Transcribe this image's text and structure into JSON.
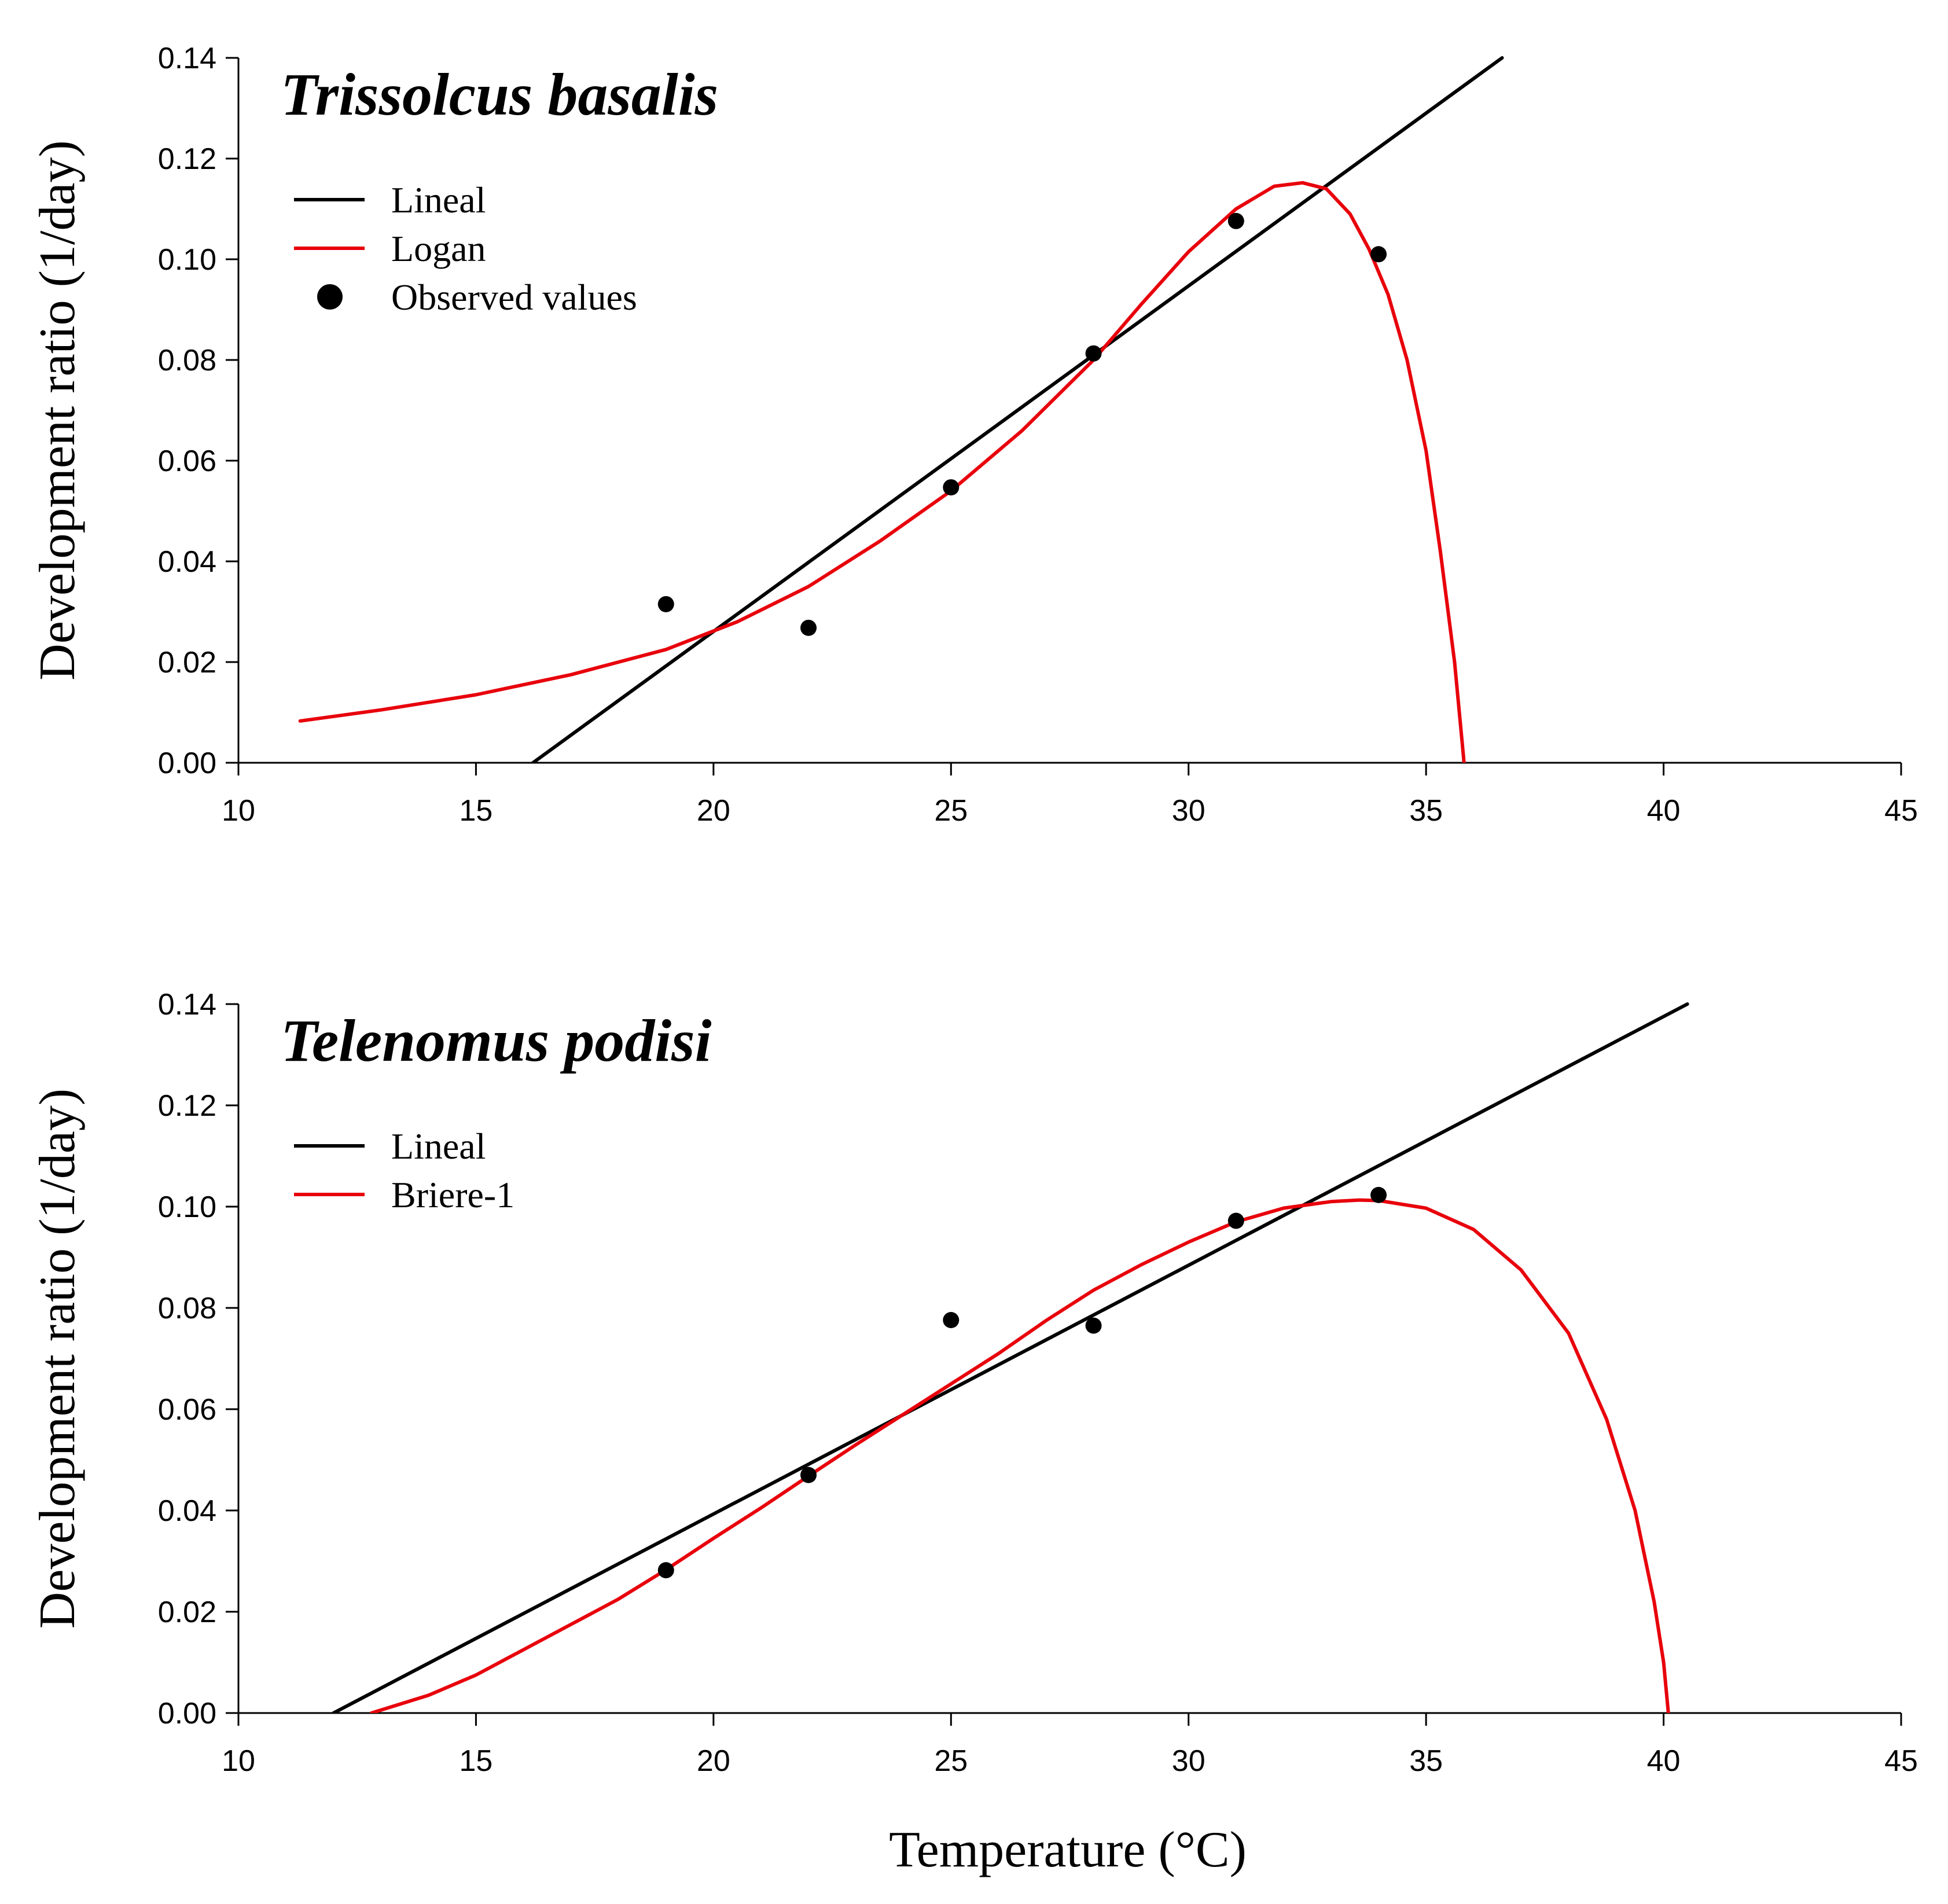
{
  "figure": {
    "x_axis_title": "Temperature (°C)",
    "text_color": "#000000",
    "background": "#ffffff"
  },
  "chart_data": [
    {
      "type": "line",
      "title": "Trissolcus basalis",
      "xlabel": "Temperature (°C)",
      "ylabel": "Development ratio (1/day)",
      "xlim": [
        10,
        45
      ],
      "ylim": [
        0,
        0.14
      ],
      "xticks": [
        "10",
        "15",
        "20",
        "25",
        "30",
        "35",
        "40",
        "45"
      ],
      "yticks": [
        "0.00",
        "0.02",
        "0.04",
        "0.06",
        "0.08",
        "0.10",
        "0.12",
        "0.14"
      ],
      "grid": false,
      "legend_position": "top-left",
      "legend": [
        {
          "label": "Lineal",
          "kind": "line",
          "color": "#000000"
        },
        {
          "label": "Logan",
          "kind": "line",
          "color": "#e8000b"
        },
        {
          "label": "Observed values",
          "kind": "marker",
          "color": "#000000"
        }
      ],
      "series": [
        {
          "name": "Lineal",
          "kind": "line",
          "color": "#000000",
          "x": [
            16.2,
            36.6
          ],
          "y": [
            0.0,
            0.14
          ]
        },
        {
          "name": "Logan",
          "kind": "line",
          "color": "#e8000b",
          "x": [
            11.3,
            13,
            15,
            17,
            19,
            20.5,
            22,
            23.5,
            25,
            26.5,
            28,
            29,
            30,
            31,
            31.8,
            32.4,
            32.9,
            33.4,
            33.8,
            34.2,
            34.6,
            35.0,
            35.3,
            35.6,
            35.8
          ],
          "y": [
            0.0083,
            0.0105,
            0.0135,
            0.0175,
            0.0225,
            0.028,
            0.035,
            0.044,
            0.054,
            0.066,
            0.08,
            0.091,
            0.1015,
            0.11,
            0.1145,
            0.1152,
            0.114,
            0.109,
            0.102,
            0.093,
            0.08,
            0.062,
            0.042,
            0.02,
            0.0
          ]
        },
        {
          "name": "Observed values",
          "kind": "scatter",
          "color": "#000000",
          "x": [
            19,
            22,
            25,
            28,
            31,
            34
          ],
          "y": [
            0.0315,
            0.0268,
            0.0547,
            0.0813,
            0.1076,
            0.101
          ]
        }
      ]
    },
    {
      "type": "line",
      "title": "Telenomus podisi",
      "xlabel": "Temperature (°C)",
      "ylabel": "Development ratio (1/day)",
      "xlim": [
        10,
        45
      ],
      "ylim": [
        0,
        0.14
      ],
      "xticks": [
        "10",
        "15",
        "20",
        "25",
        "30",
        "35",
        "40",
        "45"
      ],
      "yticks": [
        "0.00",
        "0.02",
        "0.04",
        "0.06",
        "0.08",
        "0.10",
        "0.12",
        "0.14"
      ],
      "grid": false,
      "legend_position": "top-left",
      "legend": [
        {
          "label": "Lineal",
          "kind": "line",
          "color": "#000000"
        },
        {
          "label": "Briere-1",
          "kind": "line",
          "color": "#e8000b"
        }
      ],
      "series": [
        {
          "name": "Lineal",
          "kind": "line",
          "color": "#000000",
          "x": [
            12.0,
            40.5
          ],
          "y": [
            0.0,
            0.14
          ]
        },
        {
          "name": "Briere-1",
          "kind": "line",
          "color": "#e8000b",
          "x": [
            12.8,
            14,
            15,
            16,
            17,
            18,
            19,
            20,
            21,
            22,
            23,
            24,
            25,
            26,
            27,
            28,
            29,
            30,
            31,
            32,
            33,
            33.6,
            34,
            35,
            36,
            37,
            38,
            38.8,
            39.4,
            39.8,
            40.0,
            40.1
          ],
          "y": [
            0.0,
            0.0035,
            0.0075,
            0.0125,
            0.0175,
            0.0225,
            0.0283,
            0.0345,
            0.0405,
            0.0468,
            0.053,
            0.059,
            0.065,
            0.071,
            0.0775,
            0.0835,
            0.0885,
            0.093,
            0.097,
            0.0997,
            0.101,
            0.1013,
            0.1012,
            0.0997,
            0.0955,
            0.0875,
            0.075,
            0.058,
            0.04,
            0.022,
            0.01,
            0.0
          ]
        },
        {
          "name": "Observed values",
          "kind": "scatter",
          "color": "#000000",
          "x": [
            19,
            22,
            25,
            28,
            31,
            34
          ],
          "y": [
            0.0282,
            0.047,
            0.0776,
            0.0765,
            0.0972,
            0.1023
          ]
        }
      ]
    }
  ]
}
